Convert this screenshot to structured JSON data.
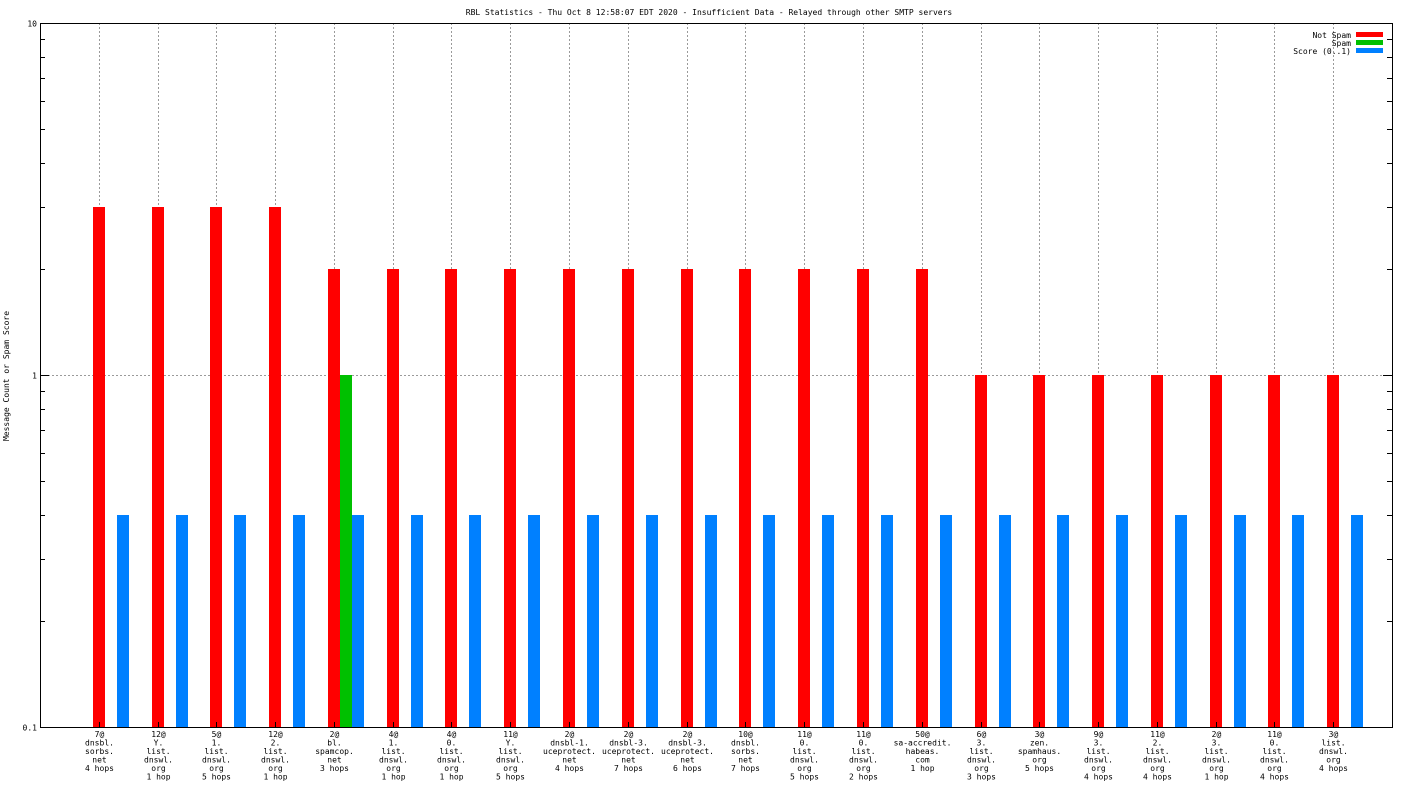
{
  "chart_data": {
    "type": "bar",
    "title": "RBL Statistics - Thu Oct  8 12:58:07 EDT 2020 - Insufficient Data - Relayed through other SMTP servers",
    "ylabel": "Message Count or Spam Score",
    "xlabel": "",
    "yscale": "log",
    "ylim": [
      0.1,
      10
    ],
    "yticks": [
      {
        "value": 0.1,
        "label": "0.1"
      },
      {
        "value": 1,
        "label": "1"
      },
      {
        "value": 10,
        "label": "10"
      }
    ],
    "grid": true,
    "legend_position": "top-right",
    "categories": [
      [
        "7@",
        "dnsbl.",
        "sorbs.",
        "net",
        "4 hops"
      ],
      [
        "12@",
        "Y.",
        "list.",
        "dnswl.",
        "org",
        "1 hop"
      ],
      [
        "5@",
        "1.",
        "list.",
        "dnswl.",
        "org",
        "5 hops"
      ],
      [
        "12@",
        "2.",
        "list.",
        "dnswl.",
        "org",
        "1 hop"
      ],
      [
        "2@",
        "bl.",
        "spamcop.",
        "net",
        "3 hops"
      ],
      [
        "4@",
        "1.",
        "list.",
        "dnswl.",
        "org",
        "1 hop"
      ],
      [
        "4@",
        "0.",
        "list.",
        "dnswl.",
        "org",
        "1 hop"
      ],
      [
        "11@",
        "Y.",
        "list.",
        "dnswl.",
        "org",
        "5 hops"
      ],
      [
        "2@",
        "dnsbl-1.",
        "uceprotect.",
        "net",
        "4 hops"
      ],
      [
        "2@",
        "dnsbl-3.",
        "uceprotect.",
        "net",
        "7 hops"
      ],
      [
        "2@",
        "dnsbl-3.",
        "uceprotect.",
        "net",
        "6 hops"
      ],
      [
        "10@",
        "dnsbl.",
        "sorbs.",
        "net",
        "7 hops"
      ],
      [
        "11@",
        "0.",
        "list.",
        "dnswl.",
        "org",
        "5 hops"
      ],
      [
        "11@",
        "0.",
        "list.",
        "dnswl.",
        "org",
        "2 hops"
      ],
      [
        "50@",
        "sa-accredit.",
        "habeas.",
        "com",
        "1 hop"
      ],
      [
        "6@",
        "3.",
        "list.",
        "dnswl.",
        "org",
        "3 hops"
      ],
      [
        "3@",
        "zen.",
        "spamhaus.",
        "org",
        "5 hops"
      ],
      [
        "9@",
        "3.",
        "list.",
        "dnswl.",
        "org",
        "4 hops"
      ],
      [
        "11@",
        "2.",
        "list.",
        "dnswl.",
        "org",
        "4 hops"
      ],
      [
        "2@",
        "3.",
        "list.",
        "dnswl.",
        "org",
        "1 hop"
      ],
      [
        "11@",
        "0.",
        "list.",
        "dnswl.",
        "org",
        "4 hops"
      ],
      [
        "3@",
        "list.",
        "dnswl.",
        "org",
        "4 hops"
      ]
    ],
    "series": [
      {
        "name": "Not Spam",
        "color": "#ff0000",
        "values": [
          3,
          3,
          3,
          3,
          2,
          2,
          2,
          2,
          2,
          2,
          2,
          2,
          2,
          2,
          2,
          1,
          1,
          1,
          1,
          1,
          1,
          1
        ]
      },
      {
        "name": "Spam",
        "color": "#00c000",
        "values": [
          0,
          0,
          0,
          0,
          1,
          0,
          0,
          0,
          0,
          0,
          0,
          0,
          0,
          0,
          0,
          0,
          0,
          0,
          0,
          0,
          0,
          0
        ]
      },
      {
        "name": "Score (0..1)",
        "color": "#0080ff",
        "values": [
          0.4,
          0.4,
          0.4,
          0.4,
          0.4,
          0.4,
          0.4,
          0.4,
          0.4,
          0.4,
          0.4,
          0.4,
          0.4,
          0.4,
          0.4,
          0.4,
          0.4,
          0.4,
          0.4,
          0.4,
          0.4,
          0.4
        ]
      }
    ]
  }
}
